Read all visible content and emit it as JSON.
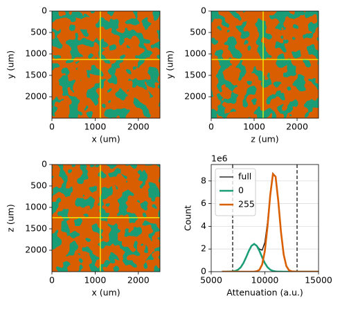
{
  "chart_data": [
    {
      "type": "image",
      "xlabel": "x (um)",
      "ylabel": "y (um)",
      "xlim": [
        0,
        2500
      ],
      "ylim": [
        2500,
        0
      ],
      "xticks": [
        0,
        1000,
        2000
      ],
      "yticks": [
        0,
        500,
        1000,
        1500,
        2000
      ],
      "colors": [
        "#1b9e77",
        "#d95f02"
      ],
      "crosshair": {
        "x": 1120,
        "y": 1130,
        "color": "#ffff00"
      }
    },
    {
      "type": "image",
      "xlabel": "z (um)",
      "ylabel": "y (um)",
      "xlim": [
        0,
        2500
      ],
      "ylim": [
        2500,
        0
      ],
      "xticks": [
        0,
        1000,
        2000
      ],
      "yticks": [
        0,
        500,
        1000,
        1500,
        2000
      ],
      "colors": [
        "#1b9e77",
        "#d95f02"
      ],
      "crosshair": {
        "x": 1210,
        "y": 1130,
        "color": "#ffff00"
      }
    },
    {
      "type": "image",
      "xlabel": "x (um)",
      "ylabel": "z (um)",
      "xlim": [
        0,
        2500
      ],
      "ylim": [
        2500,
        0
      ],
      "xticks": [
        0,
        1000,
        2000
      ],
      "yticks": [
        0,
        500,
        1000,
        1500,
        2000
      ],
      "colors": [
        "#1b9e77",
        "#d95f02"
      ],
      "crosshair": {
        "x": 1120,
        "y": 1240,
        "color": "#ffff00"
      }
    },
    {
      "type": "line",
      "xlabel": "Attenuation (a.u.)",
      "ylabel": "Count",
      "y_offset_label": "1e6",
      "xlim": [
        5000,
        15000
      ],
      "ylim": [
        0,
        9450000
      ],
      "xticks": [
        5000,
        10000,
        15000
      ],
      "yticks": [
        0,
        {
          "value": 2000000,
          "label": "2"
        },
        {
          "value": 4000000,
          "label": "4"
        },
        {
          "value": 6000000,
          "label": "6"
        },
        {
          "value": 8000000,
          "label": "8"
        }
      ],
      "grid": true,
      "legend": "upper left",
      "vlines": [
        7000,
        13000
      ],
      "x": [
        6000,
        6500,
        7000,
        7250,
        7500,
        7750,
        8000,
        8250,
        8500,
        8750,
        9000,
        9250,
        9500,
        9750,
        10000,
        10250,
        10500,
        10750,
        11000,
        11250,
        11500,
        11750,
        12000,
        12250,
        12500,
        13000,
        14000,
        15000
      ],
      "series": [
        {
          "name": "full",
          "color": "#000000",
          "linewidth": 1,
          "values": [
            0,
            1500,
            22000,
            66000,
            171000,
            386000,
            751000,
            1259000,
            1820000,
            2275600,
            2455200,
            2309000,
            1989000,
            1896000,
            2586000,
            4416000,
            6921000,
            8676000,
            8402000,
            6226000,
            3521500,
            1520300,
            499000,
            125000,
            24000,
            0,
            0,
            0
          ]
        },
        {
          "name": "0",
          "color": "#1b9e77",
          "linewidth": 2,
          "values": [
            0,
            1500,
            22000,
            66000,
            171000,
            386000,
            751000,
            1259000,
            1820000,
            2275000,
            2450000,
            2275000,
            1820000,
            1259000,
            751000,
            386000,
            171000,
            66000,
            22000,
            6000,
            1500,
            300,
            0,
            0,
            0,
            0,
            0,
            0
          ]
        },
        {
          "name": "255",
          "color": "#d95f02",
          "linewidth": 2,
          "values": [
            0,
            0,
            0,
            0,
            0,
            0,
            0,
            0,
            0,
            600,
            5200,
            34000,
            169000,
            637000,
            1835000,
            4030000,
            6750000,
            8610000,
            8380000,
            6220000,
            3520000,
            1520000,
            499000,
            125000,
            24000,
            0,
            0,
            0
          ]
        }
      ]
    }
  ]
}
